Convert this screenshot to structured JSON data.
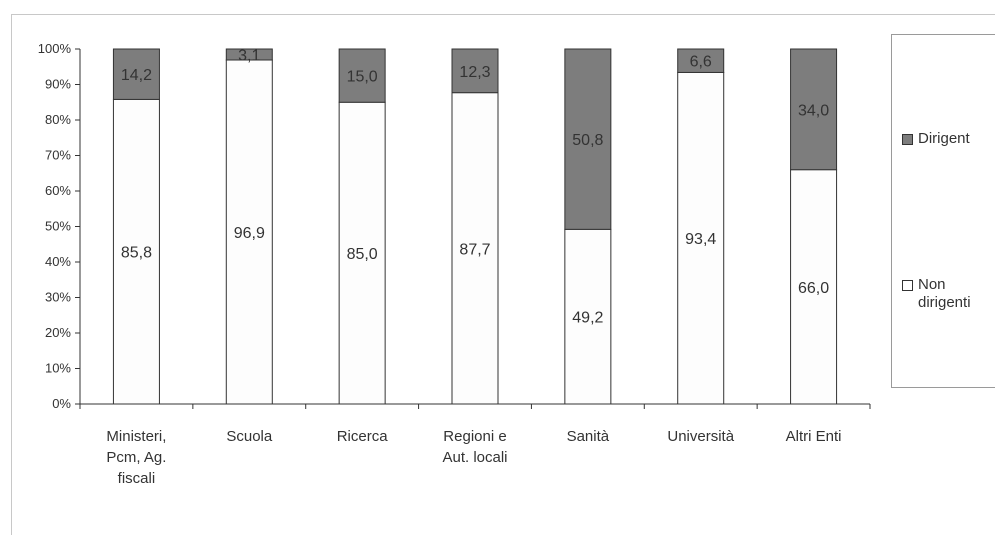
{
  "chart_data": {
    "type": "bar",
    "stacked": true,
    "categories": [
      [
        "Ministeri,",
        "Pcm, Ag.",
        "fiscali"
      ],
      [
        "Scuola"
      ],
      [
        "Ricerca"
      ],
      [
        "Regioni e",
        "Aut. locali"
      ],
      [
        "Sanità"
      ],
      [
        "Università"
      ],
      [
        "Altri Enti"
      ]
    ],
    "series": [
      {
        "name": "Non dirigenti",
        "color": "#fdfdfd",
        "values": [
          85.8,
          96.9,
          85.0,
          87.7,
          49.2,
          93.4,
          66.0
        ],
        "labels": [
          "85,8",
          "96,9",
          "85,0",
          "87,7",
          "49,2",
          "93,4",
          "66,0"
        ]
      },
      {
        "name": "Dirigenti",
        "color": "#7d7d7d",
        "values": [
          14.2,
          3.1,
          15.0,
          12.3,
          50.8,
          6.6,
          34.0
        ],
        "labels": [
          "14,2",
          "3,1",
          "15,0",
          "12,3",
          "50,8",
          "6,6",
          "34,0"
        ]
      }
    ],
    "ylim": [
      0,
      100
    ],
    "yticks": [
      "0%",
      "10%",
      "20%",
      "30%",
      "40%",
      "50%",
      "60%",
      "70%",
      "80%",
      "90%",
      "100%"
    ],
    "grid": false,
    "legend_position": "right"
  },
  "legend": {
    "dirigenti": "Dirigent",
    "non_dirigenti": "Non dirigenti"
  }
}
